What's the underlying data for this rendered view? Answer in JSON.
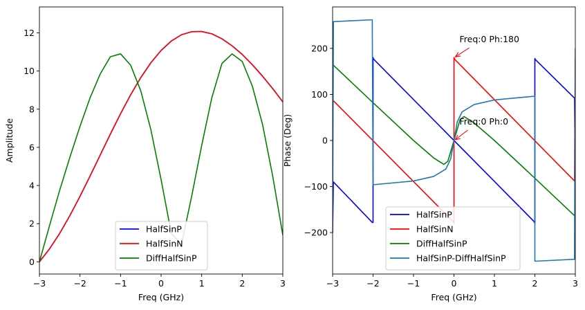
{
  "chart_data": [
    {
      "type": "line",
      "xlabel": "Freq (GHz)",
      "ylabel": "Amplitude",
      "xlim": [
        -3,
        3
      ],
      "ylim": [
        -0.64,
        13.36
      ],
      "xticks": [
        "-3",
        "-2",
        "-1",
        "0",
        "1",
        "2",
        "3"
      ],
      "yticks": [
        "0",
        "2",
        "4",
        "6",
        "8",
        "10",
        "12"
      ],
      "grid": false,
      "legend_position": "lower center",
      "series": [
        {
          "name": "HalfSinP",
          "color": "#0000ff",
          "x": [
            -3,
            -2.75,
            -2.5,
            -2.25,
            -2,
            -1.75,
            -1.5,
            -1.25,
            -1,
            -0.75,
            -0.5,
            -0.25,
            0,
            0.25,
            0.5,
            0.75,
            1,
            1.25,
            1.5,
            1.75,
            2,
            2.25,
            2.5,
            2.75,
            3
          ],
          "y": [
            0,
            0.68,
            1.49,
            2.42,
            3.43,
            4.5,
            5.6,
            6.7,
            7.76,
            8.76,
            9.66,
            10.44,
            11.08,
            11.57,
            11.9,
            12.06,
            12.07,
            11.95,
            11.69,
            11.32,
            10.87,
            10.33,
            9.73,
            9.08,
            8.38
          ]
        },
        {
          "name": "HalfSinN",
          "color": "#ff0000",
          "x": [
            -3,
            -2.75,
            -2.5,
            -2.25,
            -2,
            -1.75,
            -1.5,
            -1.25,
            -1,
            -0.75,
            -0.5,
            -0.25,
            0,
            0.25,
            0.5,
            0.75,
            1,
            1.25,
            1.5,
            1.75,
            2,
            2.25,
            2.5,
            2.75,
            3
          ],
          "y": [
            0,
            0.68,
            1.49,
            2.42,
            3.43,
            4.5,
            5.6,
            6.7,
            7.76,
            8.76,
            9.66,
            10.44,
            11.08,
            11.57,
            11.9,
            12.06,
            12.07,
            11.95,
            11.69,
            11.32,
            10.87,
            10.33,
            9.73,
            9.08,
            8.38
          ]
        },
        {
          "name": "DiffHalfSinP",
          "color": "#008000",
          "x": [
            -3,
            -2.75,
            -2.5,
            -2.25,
            -2,
            -1.75,
            -1.5,
            -1.25,
            -1,
            -0.75,
            -0.5,
            -0.25,
            0,
            0.25,
            0.5,
            0.75,
            1,
            1.25,
            1.5,
            1.75,
            2,
            2.25,
            2.5,
            2.75,
            3
          ],
          "y": [
            0,
            1.9,
            3.75,
            5.47,
            7.1,
            8.6,
            9.85,
            10.75,
            10.9,
            10.3,
            8.95,
            6.9,
            4.3,
            1.5,
            0.9,
            3.4,
            6.1,
            8.6,
            10.4,
            10.9,
            10.5,
            9.2,
            7.2,
            4.5,
            1.4
          ]
        }
      ]
    },
    {
      "type": "line",
      "xlabel": "Freq (GHz)",
      "ylabel": "Phase (Deg)",
      "xlim": [
        -3,
        3
      ],
      "ylim": [
        -290,
        290
      ],
      "xticks": [
        "-3",
        "-2",
        "-1",
        "0",
        "1",
        "2",
        "3"
      ],
      "yticks": [
        "-200",
        "-100",
        "0",
        "100",
        "200"
      ],
      "grid": false,
      "legend_position": "lower center",
      "annotations": [
        {
          "text": "Freq:0 Ph:180",
          "x": 0,
          "y": 180
        },
        {
          "text": "Freq:0 Ph:0",
          "x": 0,
          "y": 0
        }
      ],
      "series": [
        {
          "name": "HalfSinP",
          "color": "#0000ff",
          "x": [
            -3,
            -2.98,
            -2.02,
            -2.0,
            -2.0,
            -1.98,
            0,
            1.98,
            2.0,
            2.0,
            2.02,
            2.98,
            3.0
          ],
          "y": [
            -200,
            -90,
            -178,
            -178,
            180,
            176,
            0,
            -176,
            -180,
            178,
            175,
            92,
            -100
          ]
        },
        {
          "name": "HalfSinN",
          "color": "#ff0000",
          "x": [
            -3,
            -3.0,
            -0.02,
            0,
            0,
            0.02,
            2.98,
            3.0
          ],
          "y": [
            -200,
            88,
            -176,
            -180,
            180,
            176,
            -88,
            180
          ]
        },
        {
          "name": "DiffHalfSinP",
          "color": "#008000",
          "x": [
            -3,
            -2,
            -1,
            -0.5,
            -0.25,
            -0.15,
            -0.05,
            0,
            0.05,
            0.15,
            0.25,
            0.5,
            1,
            2,
            3
          ],
          "y": [
            165,
            82,
            0,
            -38,
            -52,
            -45,
            -15,
            0,
            15,
            45,
            52,
            38,
            0,
            -82,
            -165
          ]
        },
        {
          "name": "HalfSinP-DiffHalfSinP",
          "color": "#1f77b4",
          "x": [
            -3,
            -2.98,
            -2.05,
            -2.02,
            -2.0,
            -2.0,
            -1.98,
            -1.0,
            -0.5,
            -0.2,
            -0.08,
            0,
            0.08,
            0.2,
            0.5,
            1.0,
            1.98,
            2.0,
            2.0,
            2.02,
            2.05,
            2.98,
            3.0
          ],
          "y": [
            -200,
            258,
            262,
            262,
            -90,
            -97,
            -96,
            -88,
            -78,
            -62,
            -40,
            0,
            40,
            62,
            78,
            88,
            96,
            97,
            -262,
            -262,
            -262,
            -258,
            200
          ]
        }
      ]
    }
  ]
}
